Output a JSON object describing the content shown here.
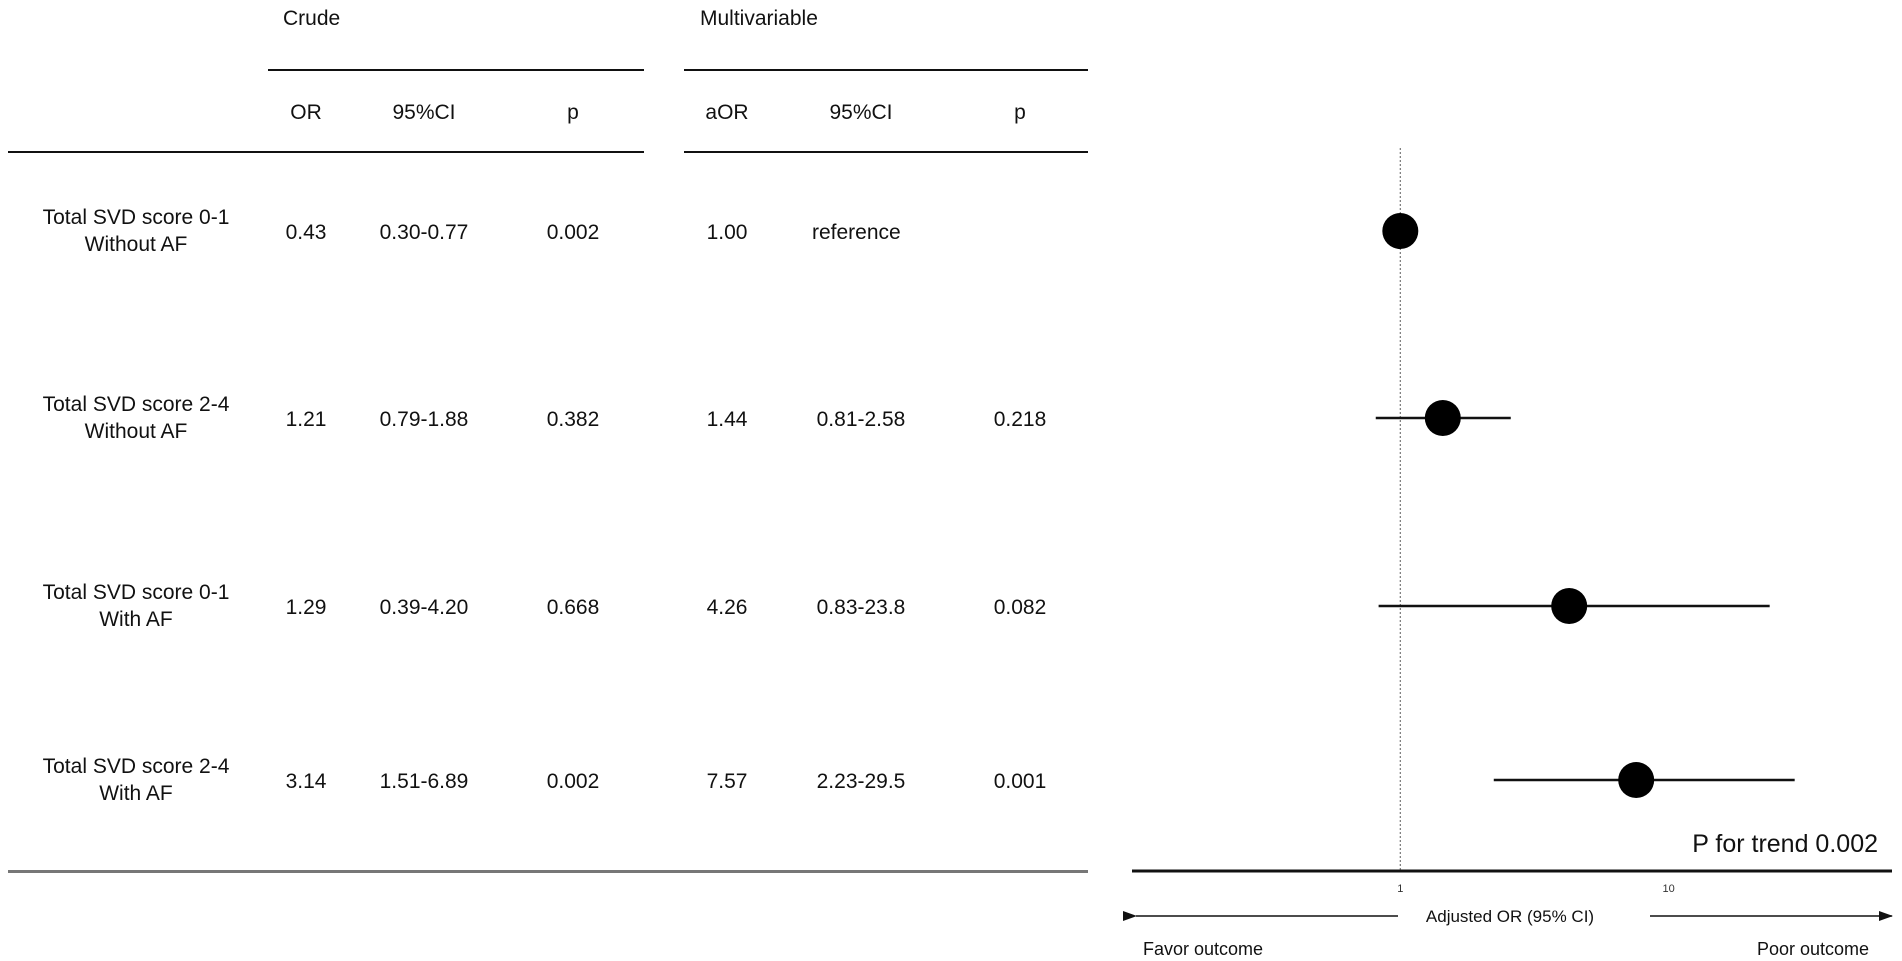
{
  "table": {
    "groups": [
      {
        "label": "Crude"
      },
      {
        "label": "Multivariable"
      }
    ],
    "columns": [
      "OR",
      "95%CI",
      "p",
      "aOR",
      "95%CI",
      "p"
    ],
    "rows": [
      {
        "label_line1": "Total SVD score 0-1",
        "label_line2": "Without AF",
        "or": "0.43",
        "or_ci": "0.30-0.77",
        "or_p": "0.002",
        "aor": "1.00",
        "aor_ci": "reference",
        "aor_p": ""
      },
      {
        "label_line1": "Total SVD score 2-4",
        "label_line2": "Without AF",
        "or": "1.21",
        "or_ci": "0.79-1.88",
        "or_p": "0.382",
        "aor": "1.44",
        "aor_ci": "0.81-2.58",
        "aor_p": "0.218"
      },
      {
        "label_line1": "Total SVD score 0-1",
        "label_line2": "With AF",
        "or": "1.29",
        "or_ci": "0.39-4.20",
        "or_p": "0.668",
        "aor": "4.26",
        "aor_ci": "0.83-23.8",
        "aor_p": "0.082"
      },
      {
        "label_line1": "Total SVD score 2-4",
        "label_line2": "With AF",
        "or": "3.14",
        "or_ci": "1.51-6.89",
        "or_p": "0.002",
        "aor": "7.57",
        "aor_ci": "2.23-29.5",
        "aor_p": "0.001"
      }
    ]
  },
  "chart_data": {
    "type": "scatter",
    "subtype": "forest-plot",
    "scale": "log",
    "xlim": [
      0.1,
      68
    ],
    "xticks": [
      {
        "value": 1,
        "label": "1"
      },
      {
        "value": 10,
        "label": "10"
      }
    ],
    "reference_line": 1,
    "xlabel": "Adjusted OR (95% CI)",
    "direction_left": "Favor outcome",
    "direction_right": "Poor outcome",
    "annotation": "P for trend 0.002",
    "points": [
      {
        "estimate": 1.0,
        "lower": null,
        "upper": null
      },
      {
        "estimate": 1.44,
        "lower": 0.81,
        "upper": 2.58
      },
      {
        "estimate": 4.26,
        "lower": 0.83,
        "upper": 23.8
      },
      {
        "estimate": 7.57,
        "lower": 2.23,
        "upper": 29.5
      }
    ]
  }
}
